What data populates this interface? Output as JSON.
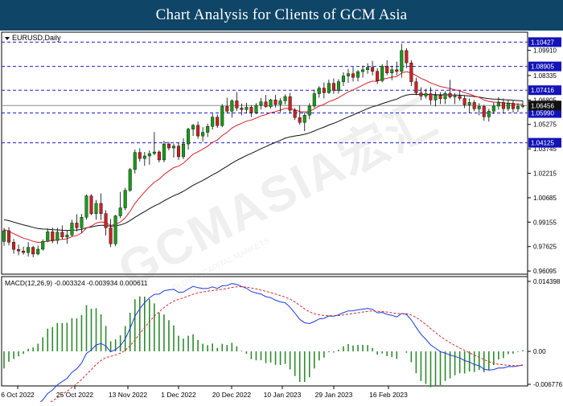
{
  "header": {
    "title": "Chart Analysis for Clients of GCM Asia"
  },
  "watermark": {
    "brand": "GCMASIA宏汇",
    "tagline": "GLOBAL CAPITAL MARKETS"
  },
  "colors": {
    "header_bg": "#0f4566",
    "bull": "#1a9a1a",
    "bear": "#cc2222",
    "ma_fast": "#d2202a",
    "ma_slow": "#111111",
    "level_line": "#1a1ad8",
    "label_bg": "#1414b8",
    "current_bg": "#111111",
    "macd": "#1a3adf",
    "signal": "#d42a2a",
    "histogram": "#2e8b2e"
  },
  "chart_data": [
    {
      "type": "candlestick",
      "symbol_label": "EURUSD,Daily",
      "ylim": [
        0.9605,
        1.1095
      ],
      "yticks": [
        "1.09910",
        "1.08335",
        "1.06805",
        "1.05275",
        "1.03745",
        "1.02215",
        "1.00685",
        "0.99155",
        "0.97625",
        "0.96095"
      ],
      "x_labels": [
        "6 Oct 2022",
        "25 Oct 2022",
        "13 Nov 2022",
        "1 Dec 2022",
        "20 Dec 2022",
        "10 Jan 2023",
        "29 Jan 2023",
        "16 Feb 2023"
      ],
      "levels": [
        "1.10427",
        "1.08905",
        "1.07416",
        "1.05990",
        "1.04125"
      ],
      "current_price": "1.06456",
      "moving_averages": [
        "fast (red)",
        "slow (black)"
      ],
      "candles": [
        [
          0.9795,
          0.988,
          0.9768,
          0.9862
        ],
        [
          0.9862,
          0.9885,
          0.977,
          0.979
        ],
        [
          0.979,
          0.981,
          0.9718,
          0.9745
        ],
        [
          0.9745,
          0.9775,
          0.9708,
          0.9735
        ],
        [
          0.9735,
          0.9762,
          0.9712,
          0.9725
        ],
        [
          0.9725,
          0.979,
          0.97,
          0.9758
        ],
        [
          0.9758,
          0.9766,
          0.9696,
          0.9716
        ],
        [
          0.9716,
          0.9768,
          0.9708,
          0.9746
        ],
        [
          0.9746,
          0.9808,
          0.9738,
          0.9795
        ],
        [
          0.9795,
          0.9875,
          0.979,
          0.9855
        ],
        [
          0.9855,
          0.9882,
          0.9784,
          0.9801
        ],
        [
          0.9801,
          0.988,
          0.9779,
          0.9853
        ],
        [
          0.9853,
          0.9895,
          0.9808,
          0.9822
        ],
        [
          0.9822,
          0.9865,
          0.978,
          0.9835
        ],
        [
          0.9835,
          0.993,
          0.9826,
          0.991
        ],
        [
          0.991,
          0.9965,
          0.9858,
          0.988
        ],
        [
          0.988,
          0.9966,
          0.985,
          0.9946
        ],
        [
          0.9946,
          1.0089,
          0.993,
          1.008
        ],
        [
          1.008,
          1.009,
          0.9959,
          0.9968
        ],
        [
          0.9968,
          1.0055,
          0.993,
          1.0033
        ],
        [
          1.0033,
          1.0095,
          0.9929,
          0.9969
        ],
        [
          0.9969,
          0.999,
          0.9832,
          0.988
        ],
        [
          0.988,
          0.9935,
          0.976,
          0.978
        ],
        [
          0.978,
          0.9961,
          0.9765,
          0.9955
        ],
        [
          0.9955,
          1.0105,
          0.994,
          1.0005
        ],
        [
          1.0005,
          1.013,
          0.999,
          1.0115
        ],
        [
          1.0115,
          1.0255,
          1.0105,
          1.0245
        ],
        [
          1.0245,
          1.037,
          1.022,
          1.0352
        ],
        [
          1.0352,
          1.0378,
          1.0295,
          1.0314
        ],
        [
          1.0314,
          1.0355,
          1.0268,
          1.033
        ],
        [
          1.033,
          1.0365,
          1.0275,
          1.0345
        ],
        [
          1.0345,
          1.048,
          1.0335,
          1.0355
        ],
        [
          1.0355,
          1.0365,
          1.029,
          1.0305
        ],
        [
          1.0305,
          1.0425,
          1.029,
          1.0405
        ],
        [
          1.0405,
          1.0418,
          1.0365,
          1.038
        ],
        [
          1.038,
          1.0407,
          1.032,
          1.0392
        ],
        [
          1.0392,
          1.0415,
          1.0305,
          1.0325
        ],
        [
          1.0325,
          1.044,
          1.031,
          1.0405
        ],
        [
          1.0405,
          1.0506,
          1.037,
          1.0498
        ],
        [
          1.0498,
          1.053,
          1.0456,
          1.0522
        ],
        [
          1.0522,
          1.0545,
          1.0438,
          1.0455
        ],
        [
          1.0455,
          1.051,
          1.042,
          1.0478
        ],
        [
          1.0478,
          1.0532,
          1.0449,
          1.0515
        ],
        [
          1.0515,
          1.0595,
          1.0495,
          1.0573
        ],
        [
          1.0573,
          1.059,
          1.0506,
          1.052
        ],
        [
          1.052,
          1.0655,
          1.051,
          1.064
        ],
        [
          1.064,
          1.0695,
          1.0595,
          1.061
        ],
        [
          1.061,
          1.0685,
          1.057,
          1.0675
        ],
        [
          1.0675,
          1.073,
          1.0612,
          1.063
        ],
        [
          1.063,
          1.0658,
          1.0585,
          1.062
        ],
        [
          1.062,
          1.0663,
          1.0597,
          1.0635
        ],
        [
          1.0635,
          1.0648,
          1.0574,
          1.0601
        ],
        [
          1.0601,
          1.066,
          1.0592,
          1.0647
        ],
        [
          1.0647,
          1.0692,
          1.0621,
          1.0669
        ],
        [
          1.0669,
          1.0712,
          1.0632,
          1.0639
        ],
        [
          1.0639,
          1.0688,
          1.0626,
          1.0681
        ],
        [
          1.0681,
          1.0713,
          1.0633,
          1.0652
        ],
        [
          1.0652,
          1.0693,
          1.0605,
          1.0675
        ],
        [
          1.0675,
          1.0715,
          1.0652,
          1.0701
        ],
        [
          1.0701,
          1.0725,
          1.0595,
          1.0616
        ],
        [
          1.0616,
          1.063,
          1.0555,
          1.057
        ],
        [
          1.057,
          1.0645,
          1.0525,
          1.054
        ],
        [
          1.054,
          1.06,
          1.0485,
          1.0585
        ],
        [
          1.0585,
          1.066,
          1.056,
          1.0642
        ],
        [
          1.0642,
          1.0745,
          1.063,
          1.072
        ],
        [
          1.072,
          1.0767,
          1.0695,
          1.0755
        ],
        [
          1.0755,
          1.079,
          1.069,
          1.0726
        ],
        [
          1.0726,
          1.0808,
          1.0719,
          1.0785
        ],
        [
          1.0785,
          1.0815,
          1.0718,
          1.074
        ],
        [
          1.074,
          1.081,
          1.072,
          1.0795
        ],
        [
          1.0795,
          1.0854,
          1.0767,
          1.0831
        ],
        [
          1.0831,
          1.0875,
          1.0788,
          1.0845
        ],
        [
          1.0845,
          1.0887,
          1.0796,
          1.0822
        ],
        [
          1.0822,
          1.0868,
          1.0797,
          1.0858
        ],
        [
          1.0858,
          1.0895,
          1.082,
          1.087
        ],
        [
          1.087,
          1.091,
          1.0844,
          1.0885
        ],
        [
          1.0885,
          1.0925,
          1.0835,
          1.086
        ],
        [
          1.086,
          1.088,
          1.078,
          1.0801
        ],
        [
          1.0801,
          1.0905,
          1.0791,
          1.0892
        ],
        [
          1.0892,
          1.0929,
          1.0836,
          1.085
        ],
        [
          1.085,
          1.0895,
          1.0805,
          1.087
        ],
        [
          1.087,
          1.092,
          1.0835,
          1.0859
        ],
        [
          1.0859,
          1.1033,
          1.082,
          1.099
        ],
        [
          1.099,
          1.1005,
          1.088,
          1.0913
        ],
        [
          1.0913,
          1.093,
          1.0768,
          1.0795
        ],
        [
          1.0795,
          1.082,
          1.071,
          1.0725
        ],
        [
          1.0725,
          1.076,
          1.068,
          1.0705
        ],
        [
          1.0705,
          1.075,
          1.069,
          1.072
        ],
        [
          1.072,
          1.076,
          1.065,
          1.068
        ],
        [
          1.068,
          1.0733,
          1.064,
          1.071
        ],
        [
          1.071,
          1.073,
          1.0655,
          1.0688
        ],
        [
          1.0688,
          1.0735,
          1.0655,
          1.0722
        ],
        [
          1.0722,
          1.0806,
          1.069,
          1.0699
        ],
        [
          1.0699,
          1.0724,
          1.0655,
          1.0704
        ],
        [
          1.0704,
          1.0735,
          1.0675,
          1.069
        ],
        [
          1.069,
          1.071,
          1.063,
          1.065
        ],
        [
          1.065,
          1.069,
          1.06,
          1.0665
        ],
        [
          1.0665,
          1.068,
          1.061,
          1.0625
        ],
        [
          1.0625,
          1.066,
          1.0585,
          1.064
        ],
        [
          1.064,
          1.065,
          1.055,
          1.0575
        ],
        [
          1.0575,
          1.0625,
          1.0545,
          1.061
        ],
        [
          1.061,
          1.0665,
          1.0592,
          1.0642
        ],
        [
          1.0642,
          1.0698,
          1.062,
          1.0665
        ],
        [
          1.0665,
          1.069,
          1.0595,
          1.0626
        ],
        [
          1.0626,
          1.068,
          1.0612,
          1.066
        ],
        [
          1.066,
          1.0676,
          1.0602,
          1.0625
        ],
        [
          1.0625,
          1.066,
          1.0605,
          1.064
        ],
        [
          1.064,
          1.0675,
          1.0628,
          1.0646
        ]
      ]
    },
    {
      "type": "macd",
      "label": "MACD(12,26,9) -0.003324 -0.003934 0.000611",
      "yticks": [
        "0.014398",
        "0.00",
        "-0.006776"
      ]
    }
  ]
}
